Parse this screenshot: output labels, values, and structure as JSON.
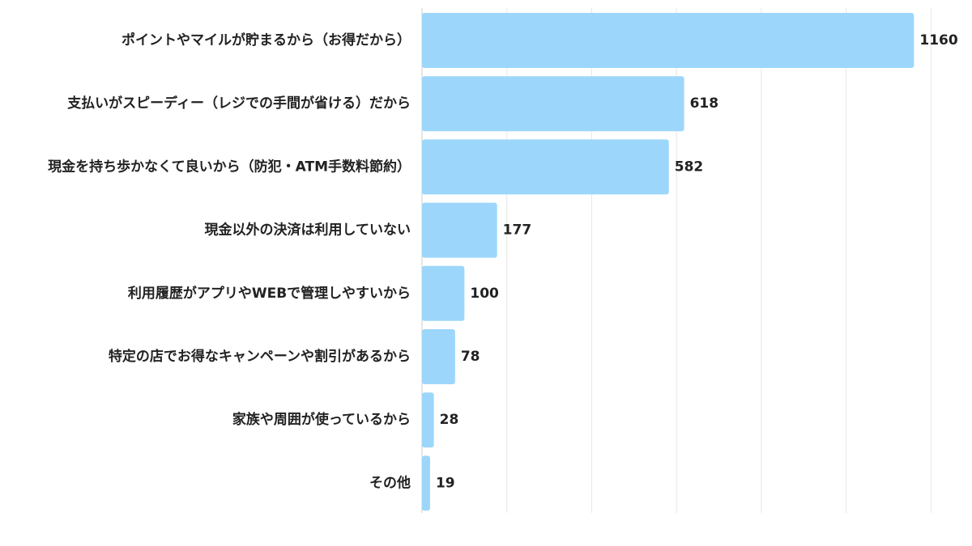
{
  "chart_data": {
    "type": "bar",
    "orientation": "horizontal",
    "categories": [
      "ポイントやマイルが貯まるから（お得だから）",
      "支払いがスピーディー（レジでの手間が省ける）だから",
      "現金を持ち歩かなくて良いから（防犯・ATM手数料節約）",
      "現金以外の決済は利用していない",
      "利用履歴がアプリやWEBで管理しやすいから",
      "特定の店でお得なキャンペーンや割引があるから",
      "家族や周囲が使っているから",
      "その他"
    ],
    "values": [
      1160,
      618,
      582,
      177,
      100,
      78,
      28,
      19
    ],
    "xlim": [
      0,
      1200
    ],
    "grid": true,
    "legend": false,
    "colors": {
      "bar": "#9cd6fb",
      "grid": "#e6e6e6",
      "axis": "#cccccc",
      "text": "#222222"
    }
  }
}
